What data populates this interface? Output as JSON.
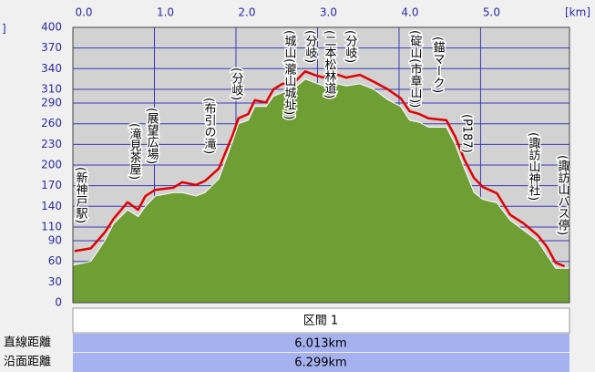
{
  "chart_data": {
    "type": "line",
    "xlabel": "[km]",
    "ylabel": "]",
    "x": [
      0.02,
      0.22,
      0.39,
      0.5,
      0.67,
      0.8,
      0.89,
      1.01,
      1.23,
      1.34,
      1.51,
      1.62,
      1.79,
      1.96,
      2.03,
      2.15,
      2.23,
      2.37,
      2.46,
      2.57,
      2.7,
      2.85,
      2.96,
      3.07,
      3.18,
      3.35,
      3.52,
      3.69,
      3.86,
      4.02,
      4.13,
      4.25,
      4.36,
      4.58,
      4.69,
      4.8,
      4.92,
      5.03,
      5.2,
      5.36,
      5.53,
      5.7,
      5.81,
      5.92,
      6.03
    ],
    "series": [
      {
        "color": "#6f9e35",
        "fill": true,
        "values": [
          55,
          60,
          90,
          115,
          135,
          125,
          140,
          155,
          160,
          160,
          155,
          160,
          180,
          235,
          260,
          265,
          285,
          285,
          300,
          305,
          310,
          325,
          320,
          315,
          320,
          315,
          318,
          310,
          295,
          285,
          265,
          262,
          255,
          255,
          230,
          195,
          160,
          150,
          145,
          120,
          105,
          90,
          70,
          50,
          50
        ]
      },
      {
        "color": "#e00000",
        "fill": false,
        "values": [
          75,
          79,
          102,
          122,
          146,
          135,
          155,
          164,
          167,
          175,
          171,
          177,
          195,
          244,
          268,
          274,
          294,
          291,
          310,
          318,
          318,
          336,
          331,
          327,
          334,
          327,
          331,
          321,
          310,
          297,
          278,
          274,
          268,
          265,
          241,
          208,
          181,
          168,
          159,
          128,
          115,
          98,
          82,
          58,
          53
        ]
      }
    ],
    "xlim": [
      0,
      6.09
    ],
    "ylim": [
      0,
      400
    ],
    "xticks": [
      {
        "value": 0,
        "label": "0.0"
      },
      {
        "value": 1,
        "label": "1.0"
      },
      {
        "value": 2,
        "label": "2.0"
      },
      {
        "value": 3,
        "label": "3.0"
      },
      {
        "value": 4,
        "label": "4.0"
      },
      {
        "value": 5,
        "label": "5.0"
      }
    ],
    "yticks": [
      0,
      30,
      60,
      90,
      110,
      140,
      170,
      200,
      230,
      260,
      290,
      310,
      340,
      370,
      400
    ],
    "grid": true,
    "annotations": [
      "(新神戸駅)",
      "(滝見茶屋)",
      "(展望広場)",
      "(布引の滝)",
      "(分岐)",
      "(城山(瀧山城址))",
      "(分岐)",
      "(二本松林道)",
      "(分岐)",
      "(碇山(市章山))",
      "(錨マーク)",
      "(P187)",
      "(諏訪山神社)",
      "(諏訪山バス停)"
    ]
  },
  "table": {
    "header": "区間 1",
    "rows": [
      [
        "直線距離",
        "6.013km"
      ],
      [
        "沿面距離",
        "6.299km"
      ]
    ]
  }
}
